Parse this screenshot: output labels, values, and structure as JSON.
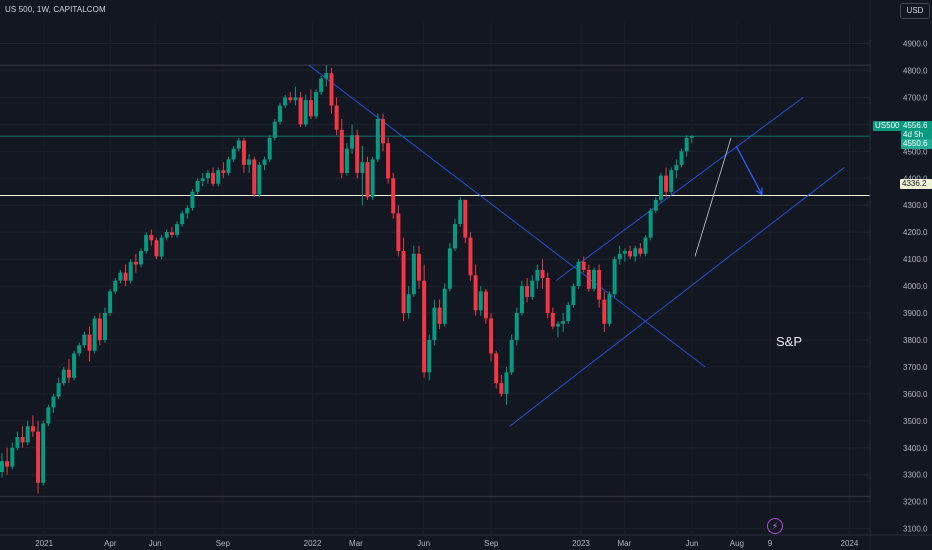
{
  "header": {
    "symbol_title": "US 500, 1W, CAPITALCOM",
    "currency": "USD"
  },
  "annotations": {
    "sp_label": "S&P",
    "tag_symbol": "US500",
    "tag_close": "4556.6",
    "tag_timer": "4d 5h",
    "tag_high": "4550.6",
    "tag_level": "4336.2",
    "lightning_icon": "lightning-icon"
  },
  "colors": {
    "up": "#089981",
    "down": "#f23645",
    "trend": "#2962ff",
    "level": "#f0f3d6",
    "background": "#131722"
  },
  "chart_data": {
    "type": "candlestick",
    "title": "",
    "xlabel": "",
    "ylabel": "",
    "ylim": [
      3080,
      4980
    ],
    "y_ticks": [
      4900,
      4800,
      4700,
      4600,
      4500,
      4400,
      4300,
      4200,
      4100,
      4000,
      3900,
      3800,
      3700,
      3600,
      3500,
      3400,
      3300,
      3200,
      3100
    ],
    "y_tick_labels": [
      "4900.0",
      "4800.0",
      "4700.0",
      "4600.0",
      "4500.0",
      "4400.0",
      "4300.0",
      "4200.0",
      "4100.0",
      "4000.0",
      "3900.0",
      "3800.0",
      "3700.0",
      "3600.0",
      "3500.0",
      "3400.0",
      "3300.0",
      "3200.0",
      "3100.0"
    ],
    "x_range": [
      "2020-11-02",
      "2024-01-29"
    ],
    "x_ticks": [
      {
        "label": "2021",
        "date": "2021-01-01"
      },
      {
        "label": "Apr",
        "date": "2021-04-01"
      },
      {
        "label": "Jun",
        "date": "2021-06-01"
      },
      {
        "label": "Sep",
        "date": "2021-09-01"
      },
      {
        "label": "2022",
        "date": "2022-01-01"
      },
      {
        "label": "Mar",
        "date": "2022-03-01"
      },
      {
        "label": "Jun",
        "date": "2022-06-01"
      },
      {
        "label": "Sep",
        "date": "2022-09-01"
      },
      {
        "label": "2023",
        "date": "2023-01-01"
      },
      {
        "label": "Mar",
        "date": "2023-03-01"
      },
      {
        "label": "Jun",
        "date": "2023-06-01"
      },
      {
        "label": "Aug",
        "date": "2023-08-01"
      },
      {
        "label": "9",
        "date": "2023-09-15"
      },
      {
        "label": "2024",
        "date": "2024-01-01"
      }
    ],
    "start_week": "2020-11-02",
    "candles_ohlc": [
      [
        3310,
        3380,
        3290,
        3350
      ],
      [
        3350,
        3400,
        3300,
        3330
      ],
      [
        3330,
        3420,
        3320,
        3400
      ],
      [
        3400,
        3460,
        3390,
        3440
      ],
      [
        3440,
        3480,
        3400,
        3420
      ],
      [
        3420,
        3500,
        3410,
        3480
      ],
      [
        3480,
        3520,
        3440,
        3460
      ],
      [
        3460,
        3500,
        3230,
        3270
      ],
      [
        3270,
        3500,
        3260,
        3490
      ],
      [
        3490,
        3560,
        3480,
        3550
      ],
      [
        3550,
        3600,
        3530,
        3590
      ],
      [
        3590,
        3660,
        3580,
        3640
      ],
      [
        3640,
        3700,
        3630,
        3690
      ],
      [
        3690,
        3730,
        3640,
        3660
      ],
      [
        3660,
        3760,
        3650,
        3750
      ],
      [
        3750,
        3790,
        3740,
        3780
      ],
      [
        3780,
        3830,
        3770,
        3820
      ],
      [
        3820,
        3850,
        3720,
        3760
      ],
      [
        3760,
        3890,
        3750,
        3880
      ],
      [
        3880,
        3900,
        3780,
        3800
      ],
      [
        3800,
        3920,
        3790,
        3900
      ],
      [
        3900,
        3990,
        3890,
        3980
      ],
      [
        3980,
        4030,
        3970,
        4020
      ],
      [
        4020,
        4060,
        4010,
        4050
      ],
      [
        4050,
        4080,
        4000,
        4020
      ],
      [
        4020,
        4100,
        4010,
        4090
      ],
      [
        4090,
        4120,
        4050,
        4080
      ],
      [
        4080,
        4140,
        4070,
        4130
      ],
      [
        4130,
        4200,
        4120,
        4190
      ],
      [
        4190,
        4210,
        4150,
        4170
      ],
      [
        4170,
        4180,
        4100,
        4110
      ],
      [
        4110,
        4190,
        4100,
        4180
      ],
      [
        4180,
        4210,
        4170,
        4200
      ],
      [
        4200,
        4220,
        4180,
        4190
      ],
      [
        4190,
        4240,
        4180,
        4230
      ],
      [
        4230,
        4280,
        4220,
        4270
      ],
      [
        4270,
        4300,
        4250,
        4290
      ],
      [
        4290,
        4360,
        4280,
        4350
      ],
      [
        4350,
        4400,
        4340,
        4390
      ],
      [
        4390,
        4420,
        4370,
        4400
      ],
      [
        4400,
        4430,
        4380,
        4420
      ],
      [
        4420,
        4440,
        4370,
        4380
      ],
      [
        4380,
        4440,
        4370,
        4430
      ],
      [
        4430,
        4460,
        4400,
        4420
      ],
      [
        4420,
        4480,
        4410,
        4470
      ],
      [
        4470,
        4520,
        4460,
        4510
      ],
      [
        4510,
        4550,
        4500,
        4540
      ],
      [
        4540,
        4550,
        4420,
        4450
      ],
      [
        4450,
        4490,
        4420,
        4470
      ],
      [
        4470,
        4480,
        4330,
        4340
      ],
      [
        4340,
        4460,
        4330,
        4450
      ],
      [
        4450,
        4480,
        4430,
        4470
      ],
      [
        4470,
        4560,
        4460,
        4550
      ],
      [
        4550,
        4620,
        4540,
        4610
      ],
      [
        4610,
        4680,
        4600,
        4670
      ],
      [
        4670,
        4710,
        4660,
        4700
      ],
      [
        4700,
        4720,
        4680,
        4690
      ],
      [
        4690,
        4740,
        4670,
        4700
      ],
      [
        4700,
        4720,
        4590,
        4600
      ],
      [
        4600,
        4710,
        4590,
        4690
      ],
      [
        4690,
        4730,
        4620,
        4630
      ],
      [
        4630,
        4730,
        4620,
        4720
      ],
      [
        4720,
        4780,
        4710,
        4770
      ],
      [
        4770,
        4820,
        4740,
        4790
      ],
      [
        4790,
        4810,
        4640,
        4670
      ],
      [
        4670,
        4700,
        4560,
        4580
      ],
      [
        4580,
        4620,
        4400,
        4420
      ],
      [
        4420,
        4530,
        4410,
        4510
      ],
      [
        4510,
        4600,
        4490,
        4560
      ],
      [
        4560,
        4580,
        4400,
        4420
      ],
      [
        4420,
        4520,
        4300,
        4460
      ],
      [
        4460,
        4480,
        4320,
        4330
      ],
      [
        4330,
        4480,
        4320,
        4470
      ],
      [
        4470,
        4640,
        4460,
        4620
      ],
      [
        4620,
        4640,
        4500,
        4530
      ],
      [
        4530,
        4550,
        4380,
        4400
      ],
      [
        4400,
        4420,
        4250,
        4270
      ],
      [
        4270,
        4300,
        4110,
        4130
      ],
      [
        4130,
        4180,
        3870,
        3900
      ],
      [
        3900,
        4000,
        3880,
        3970
      ],
      [
        3970,
        4150,
        3960,
        4120
      ],
      [
        4120,
        4150,
        3990,
        4020
      ],
      [
        4020,
        4080,
        3660,
        3680
      ],
      [
        3680,
        3820,
        3650,
        3800
      ],
      [
        3800,
        3950,
        3780,
        3920
      ],
      [
        3920,
        3950,
        3840,
        3860
      ],
      [
        3860,
        4010,
        3850,
        3990
      ],
      [
        3990,
        4160,
        3980,
        4140
      ],
      [
        4140,
        4250,
        4130,
        4230
      ],
      [
        4230,
        4330,
        4220,
        4320
      ],
      [
        4320,
        4300,
        4160,
        4180
      ],
      [
        4180,
        4200,
        4020,
        4040
      ],
      [
        4040,
        4080,
        3890,
        3910
      ],
      [
        3910,
        4000,
        3890,
        3980
      ],
      [
        3980,
        3990,
        3860,
        3880
      ],
      [
        3880,
        3900,
        3720,
        3750
      ],
      [
        3750,
        3760,
        3620,
        3640
      ],
      [
        3640,
        3670,
        3590,
        3600
      ],
      [
        3600,
        3700,
        3560,
        3680
      ],
      [
        3680,
        3820,
        3670,
        3800
      ],
      [
        3800,
        3920,
        3780,
        3900
      ],
      [
        3900,
        4020,
        3890,
        4000
      ],
      [
        4000,
        4030,
        3940,
        3960
      ],
      [
        3960,
        4040,
        3950,
        4020
      ],
      [
        4020,
        4080,
        3990,
        4060
      ],
      [
        4060,
        4100,
        3990,
        4030
      ],
      [
        4030,
        4050,
        3880,
        3900
      ],
      [
        3900,
        3920,
        3840,
        3850
      ],
      [
        3850,
        3870,
        3810,
        3860
      ],
      [
        3860,
        3900,
        3830,
        3870
      ],
      [
        3870,
        3940,
        3860,
        3930
      ],
      [
        3930,
        4010,
        3920,
        4000
      ],
      [
        4000,
        4100,
        3990,
        4090
      ],
      [
        4090,
        4110,
        4050,
        4060
      ],
      [
        4060,
        4080,
        3980,
        3990
      ],
      [
        3990,
        4070,
        3980,
        4060
      ],
      [
        4060,
        4080,
        3920,
        3950
      ],
      [
        3950,
        3980,
        3830,
        3860
      ],
      [
        3860,
        3980,
        3850,
        3970
      ],
      [
        3970,
        4110,
        3960,
        4100
      ],
      [
        4100,
        4150,
        4080,
        4120
      ],
      [
        4120,
        4140,
        4090,
        4130
      ],
      [
        4130,
        4150,
        4100,
        4110
      ],
      [
        4110,
        4150,
        4090,
        4140
      ],
      [
        4140,
        4160,
        4110,
        4120
      ],
      [
        4120,
        4190,
        4110,
        4180
      ],
      [
        4180,
        4290,
        4170,
        4280
      ],
      [
        4280,
        4330,
        4270,
        4320
      ],
      [
        4320,
        4420,
        4310,
        4410
      ],
      [
        4410,
        4440,
        4330,
        4350
      ],
      [
        4350,
        4440,
        4340,
        4430
      ],
      [
        4430,
        4470,
        4400,
        4450
      ],
      [
        4450,
        4510,
        4440,
        4500
      ],
      [
        4500,
        4560,
        4480,
        4550
      ],
      [
        4550,
        4560,
        4530,
        4556.6
      ]
    ],
    "horizontal_levels": [
      {
        "value": 4820,
        "style": "thin"
      },
      {
        "value": 4556.6,
        "style": "current-price"
      },
      {
        "value": 4336.2,
        "style": "key-level"
      },
      {
        "value": 3220,
        "style": "thin"
      }
    ],
    "trend_lines": [
      {
        "from": [
          "2021-12-27",
          4820
        ],
        "to": [
          "2023-06-19",
          3700
        ]
      },
      {
        "from": [
          "2022-09-26",
          3480
        ],
        "to": [
          "2023-12-25",
          4440
        ]
      },
      {
        "from": [
          "2022-11-28",
          4020
        ],
        "to": [
          "2023-10-30",
          4700
        ]
      },
      {
        "from": [
          "2023-06-05",
          4110
        ],
        "to": [
          "2023-07-24",
          4550
        ]
      }
    ],
    "projection_arrow": {
      "from": [
        "2023-07-31",
        4520
      ],
      "to": [
        "2023-09-04",
        4340
      ]
    }
  }
}
